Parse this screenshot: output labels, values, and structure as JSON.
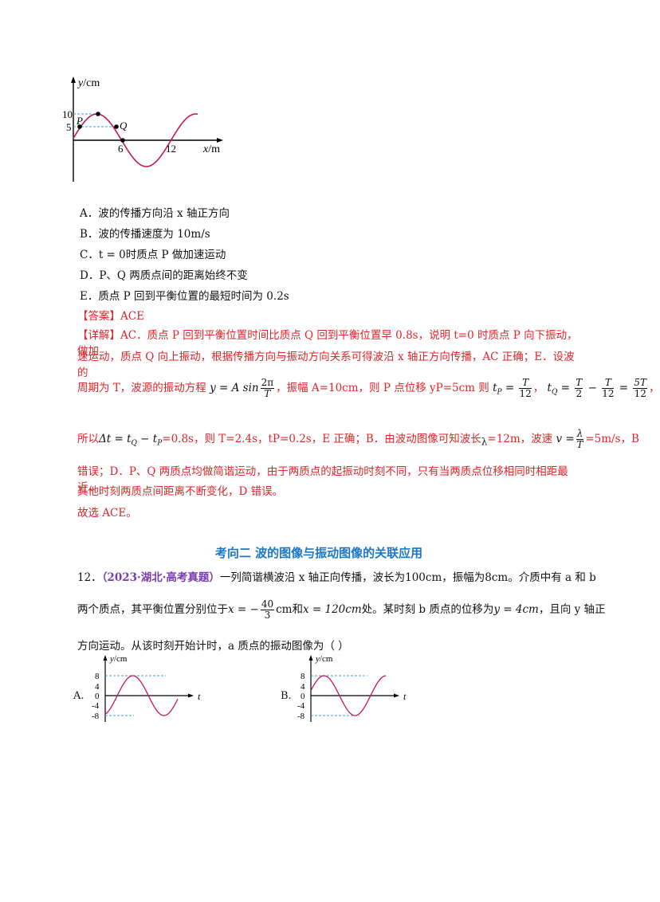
{
  "graph1": {
    "y_axis_label": "y/cm",
    "x_axis_label": "x/m",
    "y_ticks": [
      "10",
      "5"
    ],
    "x_ticks": [
      "6",
      "12"
    ],
    "point_P": "P",
    "point_Q": "Q"
  },
  "options1": [
    "A．波的传播方向沿 x 轴正方向",
    "B．波的传播速度为 10m/s",
    "C．t = 0时质点 P 做加速运动",
    "D．P、Q 两质点间的距离始终不变",
    "E．质点 P 回到平衡位置的最短时间为 0.2s"
  ],
  "answer": {
    "label": "【答案】",
    "value": "ACE"
  },
  "detail": {
    "label": "【详解】",
    "line1": "AC．质点 P 回到平衡位置时间比质点 Q 回到平衡位置早 0.8s，说明 t=0 时质点 P 向下振动，做加",
    "line2": "速运动，质点 Q 向上振动，根据传播方向与振动方向关系可得波沿 x 轴正方向传播，AC 正确；E．设波的",
    "line3_a": "周期为 T，波源的振动方程",
    "line3_eq1_left": "y = A sin",
    "line3_eq1_num": "2π",
    "line3_eq1_den": "T",
    "line3_b": "，振幅 A=10cm，则 P 点位移 yP=5cm 则",
    "line3_tp": "t",
    "line3_tp_sub": "P",
    "line3_eq": " = ",
    "line3_tp_num": "T",
    "line3_tp_den": "12",
    "line3_sep": "，",
    "line3_tq": "t",
    "line3_tq_sub": "Q",
    "line3_tq_num1": "T",
    "line3_tq_den1": "2",
    "line3_minus": " − ",
    "line3_tq_num2": "T",
    "line3_tq_den2": "12",
    "line3_tq_num3": "5T",
    "line3_tq_den3": "12",
    "line3_end": "，",
    "line4_a": "所以",
    "line4_eq": "Δt = t",
    "line4_sub_q": "Q",
    "line4_minus": " − t",
    "line4_sub_p": "P",
    "line4_b": "=0.8s，则 T=2.4s，tP=0.2s，E 正确；B．由波动图像可知波长",
    "line4_lambda": "λ",
    "line4_c": "=12m，波速",
    "line4_v": "v =",
    "line4_v_num": "λ",
    "line4_v_den": "T",
    "line4_d": "=5m/s，B",
    "line5": "错误；D．P、Q 两质点均做简谐运动，由于两质点的起振动时刻不同，只有当两质点位移相同时相距最近，",
    "line6": "其他时刻两质点间距离不断变化，D 错误。"
  },
  "conclusion": "故选 ACE。",
  "section_heading": "考向二  波的图像与振动图像的关联应用",
  "q12": {
    "number": "12．",
    "source": "（2023·湖北·高考真题）",
    "line1_a": "一列简谐横波沿 x 轴正向传播，波长为",
    "wavelength": "100cm",
    "line1_b": "，振幅为",
    "amplitude": "8cm",
    "line1_c": "。介质中有 a 和 b",
    "line2_a": "两个质点，其平衡位置分别位于",
    "xa_left": "x = −",
    "xa_num": "40",
    "xa_den": "3",
    "xa_unit": "cm",
    "line2_and": "和",
    "xb": "x = 120cm",
    "line2_b": "处。某时刻 b 质点的位移为",
    "yb": "y = 4cm",
    "line2_c": "，且向 y 轴正",
    "line3": "方向运动。从该时刻开始计时，a 质点的振动图像为（    ）"
  },
  "graphA": {
    "label": "A.",
    "y_axis_label": "y/cm",
    "t_label": "t",
    "y_ticks": [
      "8",
      "4",
      "0",
      "-4",
      "-8"
    ]
  },
  "graphB": {
    "label": "B.",
    "y_axis_label": "y/cm",
    "t_label": "t",
    "y_ticks": [
      "8",
      "4",
      "0",
      "-4",
      "-8"
    ]
  }
}
